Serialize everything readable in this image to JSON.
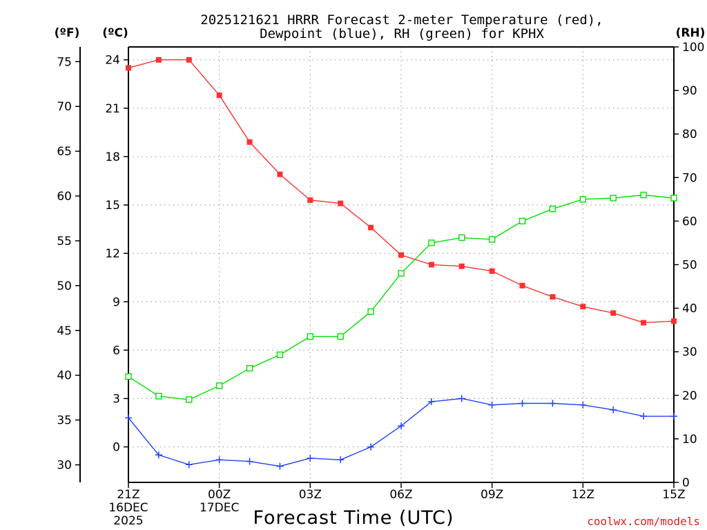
{
  "chart_data": {
    "type": "line",
    "title_line1": "2025121621 HRRR Forecast 2-meter Temperature (red),",
    "title_line2": "Dewpoint (blue), RH (green) for KPHX",
    "unit_f": "(ºF)",
    "unit_c": "(ºC)",
    "unit_rh": "(RH)",
    "xlabel": "Forecast Time (UTC)",
    "credit": "coolwx.com/models",
    "x_hours": [
      0,
      1,
      2,
      3,
      4,
      5,
      6,
      7,
      8,
      9,
      10,
      11,
      12,
      13,
      14,
      15,
      16,
      17,
      18
    ],
    "x_ticks": [
      {
        "hour": 0,
        "label": "21Z",
        "sub1": "16DEC",
        "sub2": "2025"
      },
      {
        "hour": 3,
        "label": "00Z",
        "sub1": "17DEC",
        "sub2": ""
      },
      {
        "hour": 6,
        "label": "03Z",
        "sub1": "",
        "sub2": ""
      },
      {
        "hour": 9,
        "label": "06Z",
        "sub1": "",
        "sub2": ""
      },
      {
        "hour": 12,
        "label": "09Z",
        "sub1": "",
        "sub2": ""
      },
      {
        "hour": 15,
        "label": "12Z",
        "sub1": "",
        "sub2": ""
      },
      {
        "hour": 18,
        "label": "15Z",
        "sub1": "",
        "sub2": ""
      }
    ],
    "c_axis": {
      "min": -2.2,
      "max": 24.8,
      "ticks": [
        0,
        3,
        6,
        9,
        12,
        15,
        18,
        21,
        24
      ]
    },
    "f_ticks": [
      30,
      35,
      40,
      45,
      50,
      55,
      60,
      65,
      70,
      75
    ],
    "rh_axis": {
      "min": 0,
      "max": 100,
      "ticks": [
        0,
        10,
        20,
        30,
        40,
        50,
        60,
        70,
        80,
        90,
        100
      ]
    },
    "series": [
      {
        "name": "Temperature",
        "unit": "C",
        "color": "#ff3030",
        "values": [
          23.5,
          24.0,
          24.0,
          21.8,
          18.9,
          16.9,
          15.3,
          15.1,
          13.6,
          11.9,
          11.3,
          11.2,
          10.9,
          10.0,
          9.3,
          8.7,
          8.3,
          7.7,
          7.8
        ]
      },
      {
        "name": "Dewpoint",
        "unit": "C",
        "color": "#2040ff",
        "values": [
          1.8,
          -0.5,
          -1.1,
          -0.8,
          -0.9,
          -1.2,
          -0.7,
          -0.8,
          0.0,
          1.3,
          2.8,
          3.0,
          2.6,
          2.7,
          2.7,
          2.6,
          2.3,
          1.9,
          1.9
        ]
      },
      {
        "name": "RH",
        "unit": "%",
        "color": "#00e000",
        "values": [
          24.3,
          19.8,
          19.0,
          22.2,
          26.2,
          29.3,
          33.5,
          33.5,
          39.2,
          48.0,
          55.0,
          56.2,
          55.8,
          60.0,
          62.8,
          65.0,
          65.3,
          66.0,
          65.3
        ]
      }
    ]
  }
}
